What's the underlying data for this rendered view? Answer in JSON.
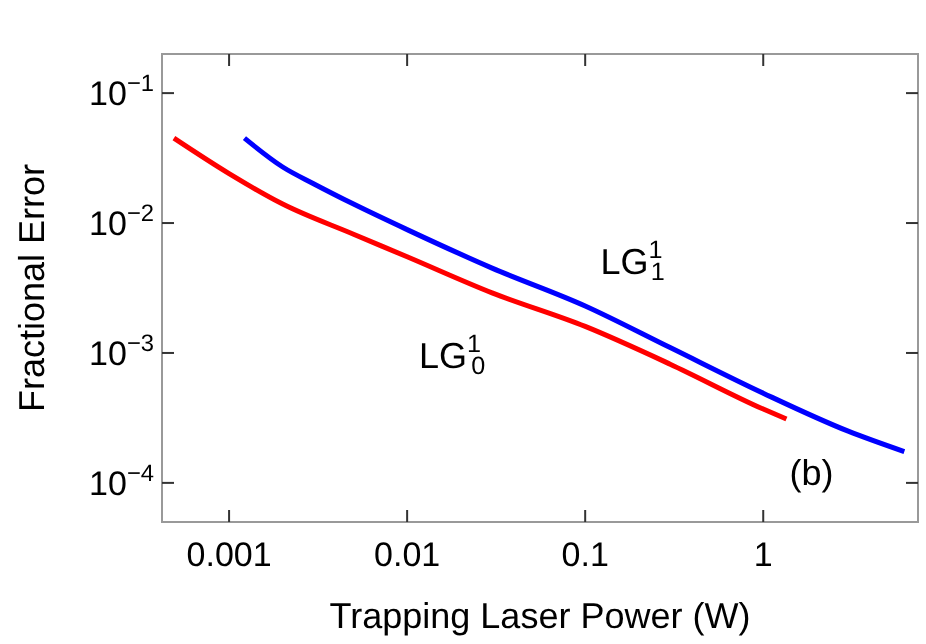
{
  "chart_data": {
    "type": "line",
    "xlabel": "Trapping Laser Power (W)",
    "ylabel": "Fractional Error",
    "log": "xy",
    "grid": false,
    "line_style": "solid",
    "xlim": [
      0.00042,
      7.4
    ],
    "xticks": [
      0.001,
      0.01,
      0.1,
      1
    ],
    "ylim": [
      5e-05,
      0.2
    ],
    "yticks": [
      {
        "value": 0.1,
        "label": "10$^{−1}$"
      },
      {
        "value": 0.01,
        "label": "10$^{−2}$"
      },
      {
        "value": 0.001,
        "label": "10$^{−3}$"
      },
      {
        "value": 0.0001,
        "label": "10$^{−4}$"
      }
    ],
    "series": [
      {
        "color": "#ff0000",
        "x": [
          0.00049,
          0.001,
          0.002,
          0.005,
          0.01,
          0.03,
          0.1,
          0.3,
          1,
          1.35
        ],
        "values": [
          0.045,
          0.024,
          0.014,
          0.0082,
          0.0055,
          0.0029,
          0.0016,
          0.00082,
          0.00037,
          0.00031
        ]
      },
      {
        "color": "#0000ff",
        "x": [
          0.00122,
          0.002,
          0.003,
          0.005,
          0.01,
          0.03,
          0.1,
          0.3,
          1,
          3,
          6.2
        ],
        "values": [
          0.045,
          0.027,
          0.02,
          0.014,
          0.0089,
          0.0045,
          0.0023,
          0.0011,
          0.00049,
          0.00025,
          0.000174
        ]
      }
    ],
    "annotations": [
      "LG$^{1}$$_{1}$",
      "LG$^{1}$$_{0}$",
      "(b)"
    ]
  }
}
